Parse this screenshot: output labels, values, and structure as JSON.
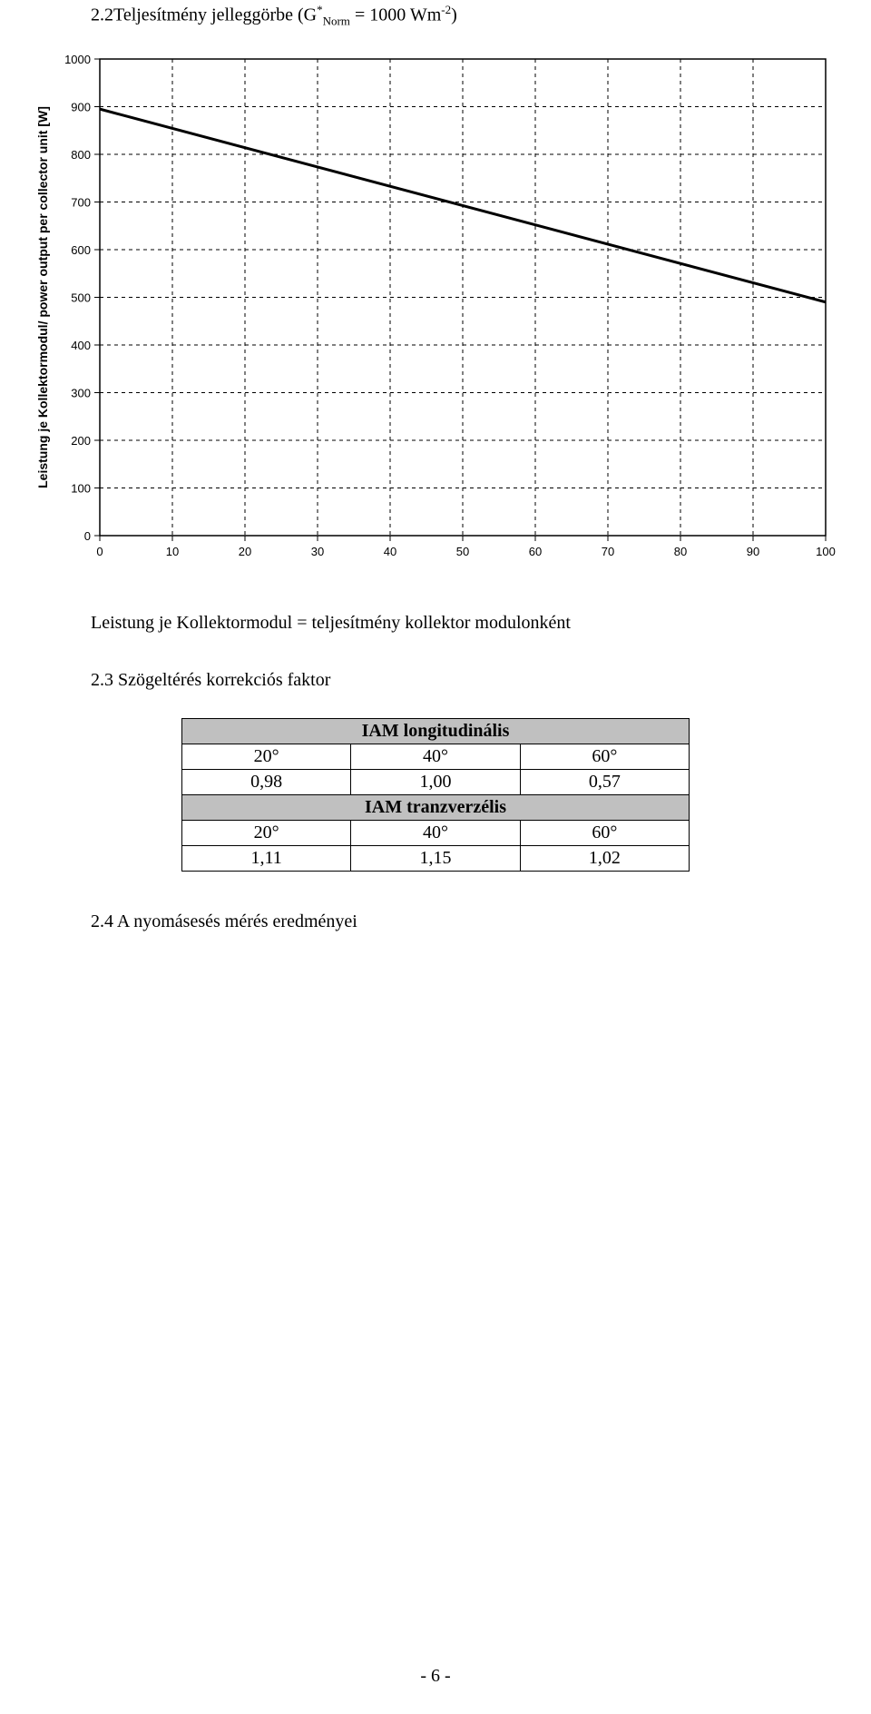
{
  "page": {
    "page_number_text": "- 6 -"
  },
  "section22": {
    "heading_prefix": "2.2",
    "heading_text": "Teljesítmény jelleggörbe (G",
    "heading_sup": "*",
    "heading_sub": "Norm",
    "heading_mid": " = 1000 Wm",
    "heading_exp": "-2",
    "heading_close": ")",
    "caption": "Leistung je Kollektormodul = teljesítmény kollektor modulonként"
  },
  "chart": {
    "type": "line",
    "ylabel": "Leistung je Kollektormodul/ power output per collector unit [W]",
    "xlim": [
      0,
      100
    ],
    "ylim": [
      0,
      1000
    ],
    "xticks": [
      0,
      10,
      20,
      30,
      40,
      50,
      60,
      70,
      80,
      90,
      100
    ],
    "yticks": [
      0,
      100,
      200,
      300,
      400,
      500,
      600,
      700,
      800,
      900,
      1000
    ],
    "line_points": [
      [
        0,
        895
      ],
      [
        100,
        490
      ]
    ],
    "line_color": "#000000",
    "line_width": 3,
    "grid_color": "#000000",
    "grid_dash": "4 4",
    "background_color": "#ffffff",
    "border_color": "#000000",
    "axis_font_size": 13,
    "ylabel_font_size": 14
  },
  "section23": {
    "heading": "2.3  Szögeltérés korrekciós faktor",
    "table": {
      "header1": "IAM longitudinális",
      "cols1": [
        "20°",
        "40°",
        "60°"
      ],
      "vals1": [
        "0,98",
        "1,00",
        "0,57"
      ],
      "header2": "IAM tranzverzélis",
      "cols2": [
        "20°",
        "40°",
        "60°"
      ],
      "vals2": [
        "1,11",
        "1,15",
        "1,02"
      ],
      "header_bg": "#c0c0c0",
      "border_color": "#000000"
    }
  },
  "section24": {
    "heading": "2.4   A nyomásesés mérés eredményei"
  }
}
